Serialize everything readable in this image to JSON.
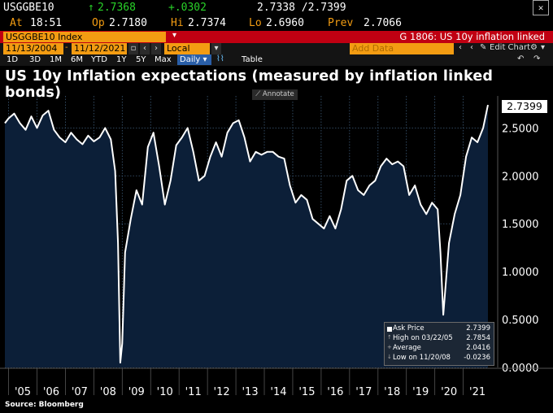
{
  "header": {
    "ticker": "USGGBE10",
    "last": "2.7368",
    "change": "+.0302",
    "bid_ask": "2.7338 /2.7399",
    "at_label": "At",
    "at_time": "18:51",
    "op_label": "Op",
    "op_value": "2.7180",
    "hi_label": "Hi",
    "hi_value": "2.7374",
    "lo_label": "Lo",
    "lo_value": "2.6960",
    "prev_label": "Prev",
    "prev_value": "2.7066",
    "security": "USGGBE10 Index",
    "function_title": "G 1806: US 10y inflation linked",
    "date_from": "11/13/2004",
    "date_to": "11/12/2021",
    "currency": "Local CCY",
    "add_data": "Add Data",
    "edit_chart": "Edit Chart",
    "periods": [
      "1D",
      "3D",
      "1M",
      "6M",
      "YTD",
      "1Y",
      "5Y",
      "Max"
    ],
    "frequency": "Daily",
    "table_label": "Table"
  },
  "chart_data": {
    "type": "area",
    "title": "US 10y Inflation expectations (measured by inflation linked bonds)",
    "source": "Source: Bloomberg",
    "annotate_label": "Annotate",
    "ylim": [
      0,
      2.8
    ],
    "y_ticks": [
      0.0,
      0.5,
      1.0,
      1.5,
      2.0,
      2.5
    ],
    "y_tick_labels": [
      "0.0000",
      "0.5000",
      "1.0000",
      "1.5000",
      "2.0000",
      "2.5000"
    ],
    "x_tick_labels": [
      "'05",
      "'06",
      "'07",
      "'08",
      "'09",
      "'10",
      "'11",
      "'12",
      "'13",
      "'14",
      "'15",
      "'16",
      "'17",
      "'18",
      "'19",
      "'20",
      "'21"
    ],
    "x_range": [
      2004.87,
      2021.87
    ],
    "last_value_label": "2.7399",
    "series": [
      {
        "values_x": [
          2004.87,
          2005.0,
          2005.2,
          2005.4,
          2005.6,
          2005.8,
          2006.0,
          2006.2,
          2006.4,
          2006.6,
          2006.8,
          2007.0,
          2007.2,
          2007.4,
          2007.6,
          2007.8,
          2008.0,
          2008.2,
          2008.4,
          2008.6,
          2008.75,
          2008.85,
          2008.93,
          2009.0,
          2009.1,
          2009.3,
          2009.5,
          2009.7,
          2009.9,
          2010.1,
          2010.3,
          2010.5,
          2010.7,
          2010.9,
          2011.1,
          2011.3,
          2011.5,
          2011.7,
          2011.9,
          2012.1,
          2012.3,
          2012.5,
          2012.7,
          2012.9,
          2013.1,
          2013.3,
          2013.5,
          2013.7,
          2013.9,
          2014.1,
          2014.3,
          2014.5,
          2014.7,
          2014.9,
          2015.1,
          2015.3,
          2015.5,
          2015.7,
          2015.9,
          2016.1,
          2016.3,
          2016.5,
          2016.7,
          2016.9,
          2017.1,
          2017.3,
          2017.5,
          2017.7,
          2017.9,
          2018.1,
          2018.3,
          2018.5,
          2018.7,
          2018.9,
          2019.1,
          2019.3,
          2019.5,
          2019.7,
          2019.9,
          2020.1,
          2020.2,
          2020.3,
          2020.5,
          2020.7,
          2020.9,
          2021.1,
          2021.3,
          2021.5,
          2021.7,
          2021.87
        ],
        "values_y": [
          2.55,
          2.6,
          2.65,
          2.55,
          2.48,
          2.62,
          2.5,
          2.63,
          2.68,
          2.48,
          2.4,
          2.35,
          2.45,
          2.38,
          2.33,
          2.42,
          2.36,
          2.4,
          2.5,
          2.38,
          2.05,
          1.3,
          0.05,
          0.25,
          1.2,
          1.55,
          1.85,
          1.7,
          2.3,
          2.45,
          2.1,
          1.7,
          1.95,
          2.32,
          2.4,
          2.5,
          2.25,
          1.95,
          2.0,
          2.2,
          2.35,
          2.2,
          2.45,
          2.55,
          2.58,
          2.4,
          2.15,
          2.25,
          2.22,
          2.25,
          2.25,
          2.2,
          2.18,
          1.9,
          1.72,
          1.8,
          1.75,
          1.55,
          1.5,
          1.45,
          1.58,
          1.45,
          1.65,
          1.95,
          2.0,
          1.85,
          1.8,
          1.9,
          1.95,
          2.1,
          2.18,
          2.12,
          2.15,
          2.1,
          1.8,
          1.9,
          1.7,
          1.6,
          1.72,
          1.65,
          1.2,
          0.55,
          1.3,
          1.6,
          1.8,
          2.2,
          2.4,
          2.35,
          2.5,
          2.74
        ]
      }
    ],
    "legend": [
      {
        "label": "Ask Price",
        "value": "2.7399"
      },
      {
        "label": "High on 03/22/05",
        "value": "2.7854"
      },
      {
        "label": "Average",
        "value": "2.0416"
      },
      {
        "label": "Low on 11/20/08",
        "value": "-0.0236"
      }
    ],
    "colors": {
      "fill": "#0c1f38",
      "line": "#ffffff",
      "grid": "#3c5a78",
      "background": "#000000"
    }
  }
}
